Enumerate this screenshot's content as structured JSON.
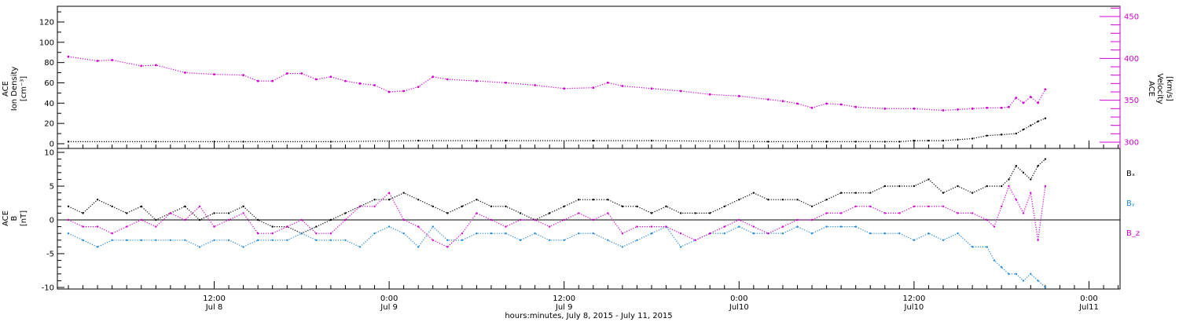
{
  "chart_data": [
    {
      "type": "scatter",
      "panel": "top",
      "ylabel_left": [
        "ACE",
        "Ion Density",
        "[cm⁻³]"
      ],
      "ylabel_right": [
        "ACE",
        "Velocity",
        "[km/s]"
      ],
      "ylim_left": [
        -3,
        135
      ],
      "ylim_right": [
        296,
        461
      ],
      "yticks_left": [
        0,
        20,
        40,
        60,
        80,
        100,
        120
      ],
      "yticks_right": [
        300,
        350,
        400,
        450
      ],
      "xlim_hours": [
        0,
        72
      ],
      "series": [
        {
          "axis": "left",
          "color": "#000000",
          "points_hours": [
            0,
            6,
            12,
            18,
            24,
            28,
            30,
            36,
            40,
            48,
            52,
            54,
            56,
            57,
            58,
            59,
            60,
            61,
            62,
            63,
            64,
            65,
            65.5,
            66,
            66.5,
            67
          ],
          "values": [
            2,
            2,
            2,
            2,
            3,
            3,
            3,
            3,
            3,
            2,
            2,
            2,
            2,
            2,
            3,
            3,
            3,
            4,
            5,
            8,
            9,
            10,
            14,
            18,
            22,
            25
          ]
        },
        {
          "axis": "right",
          "color": "#d000d0",
          "points_hours": [
            0,
            2,
            3,
            5,
            6,
            8,
            10,
            12,
            13,
            14,
            15,
            16,
            17,
            18,
            19,
            20,
            21,
            22,
            23,
            24,
            25,
            26,
            28,
            30,
            32,
            34,
            36,
            37,
            38,
            40,
            42,
            44,
            46,
            48,
            49,
            50,
            51,
            52,
            53,
            54,
            56,
            58,
            60,
            61,
            62,
            63,
            64,
            64.5,
            65,
            65.5,
            66,
            66.5,
            67
          ],
          "values": [
            402,
            397,
            398,
            391,
            392,
            383,
            381,
            380,
            373,
            373,
            382,
            382,
            375,
            378,
            373,
            370,
            368,
            360,
            361,
            366,
            378,
            375,
            373,
            371,
            368,
            364,
            365,
            371,
            367,
            364,
            361,
            357,
            355,
            351,
            349,
            346,
            341,
            346,
            345,
            342,
            340,
            340,
            338,
            339,
            340,
            341,
            341,
            342,
            353,
            347,
            354,
            347,
            363
          ]
        }
      ]
    },
    {
      "type": "scatter",
      "panel": "bottom",
      "ylabel_left": [
        "ACE",
        "B",
        "[nT]"
      ],
      "ylim": [
        -11,
        11
      ],
      "yticks": [
        -10,
        -5,
        0,
        5,
        10
      ],
      "xlim_hours": [
        0,
        72
      ],
      "xticks": [
        {
          "hour": 10,
          "time": "12:00",
          "date": "Jul 8"
        },
        {
          "hour": 22,
          "time": "0:00",
          "date": "Jul 9"
        },
        {
          "hour": 34,
          "time": "12:00",
          "date": "Jul 9"
        },
        {
          "hour": 46,
          "time": "0:00",
          "date": "Jul10"
        },
        {
          "hour": 58,
          "time": "12:00",
          "date": "Jul10"
        },
        {
          "hour": 70,
          "time": "0:00",
          "date": "Jul11"
        }
      ],
      "xlabel": "hours:minutes, July  8, 2015 - July 11, 2015",
      "series": [
        {
          "name": "Bₓ",
          "color": "#000000",
          "points_hours": [
            0,
            1,
            2,
            3,
            4,
            5,
            6,
            7,
            8,
            9,
            10,
            11,
            12,
            13,
            14,
            15,
            16,
            17,
            18,
            19,
            20,
            21,
            22,
            23,
            24,
            25,
            26,
            27,
            28,
            29,
            30,
            31,
            32,
            33,
            34,
            35,
            36,
            37,
            38,
            39,
            40,
            41,
            42,
            43,
            44,
            45,
            46,
            47,
            48,
            49,
            50,
            51,
            52,
            53,
            54,
            55,
            56,
            57,
            58,
            59,
            60,
            61,
            62,
            63,
            64,
            64.5,
            65,
            65.5,
            66,
            66.5,
            67
          ],
          "values": [
            2,
            1,
            3,
            2,
            1,
            2,
            0,
            1,
            2,
            0,
            1,
            1,
            2,
            0,
            -1,
            -1,
            -2,
            -1,
            0,
            1,
            2,
            3,
            3,
            4,
            3,
            2,
            1,
            2,
            3,
            2,
            2,
            1,
            0,
            1,
            2,
            3,
            3,
            3,
            2,
            2,
            1,
            2,
            1,
            1,
            1,
            2,
            3,
            4,
            3,
            3,
            3,
            2,
            3,
            4,
            4,
            4,
            5,
            5,
            5,
            6,
            4,
            5,
            4,
            5,
            5,
            6,
            8,
            7,
            6,
            8,
            9
          ]
        },
        {
          "name": "Bᵧ",
          "color": "#1e88d8",
          "points_hours": [
            0,
            1,
            2,
            3,
            4,
            5,
            6,
            7,
            8,
            9,
            10,
            11,
            12,
            13,
            14,
            15,
            16,
            17,
            18,
            19,
            20,
            21,
            22,
            23,
            24,
            25,
            26,
            27,
            28,
            29,
            30,
            31,
            32,
            33,
            34,
            35,
            36,
            37,
            38,
            39,
            40,
            41,
            42,
            43,
            44,
            45,
            46,
            47,
            48,
            49,
            50,
            51,
            52,
            53,
            54,
            55,
            56,
            57,
            58,
            59,
            60,
            61,
            62,
            63,
            63.5,
            64,
            64.5,
            65,
            65.5,
            66,
            66.5,
            67
          ],
          "values": [
            -2,
            -3,
            -4,
            -3,
            -3,
            -3,
            -3,
            -3,
            -3,
            -4,
            -3,
            -3,
            -4,
            -3,
            -3,
            -3,
            -2,
            -3,
            -3,
            -3,
            -4,
            -2,
            -1,
            -2,
            -4,
            -1,
            -3,
            -3,
            -2,
            -2,
            -2,
            -3,
            -2,
            -3,
            -3,
            -2,
            -2,
            -3,
            -4,
            -3,
            -2,
            -1,
            -4,
            -3,
            -2,
            -2,
            -1,
            -2,
            -2,
            -2,
            -1,
            -2,
            -1,
            -1,
            -1,
            -2,
            -2,
            -2,
            -3,
            -2,
            -3,
            -2,
            -4,
            -4,
            -6,
            -7,
            -8,
            -8,
            -9,
            -8,
            -9,
            -10
          ]
        },
        {
          "name": "B_z",
          "color": "#d000d0",
          "points_hours": [
            0,
            1,
            2,
            3,
            4,
            5,
            6,
            7,
            8,
            9,
            10,
            11,
            12,
            13,
            14,
            15,
            16,
            17,
            18,
            19,
            20,
            21,
            22,
            23,
            24,
            25,
            26,
            27,
            28,
            29,
            30,
            31,
            32,
            33,
            34,
            35,
            36,
            37,
            38,
            39,
            40,
            41,
            42,
            43,
            44,
            45,
            46,
            47,
            48,
            49,
            50,
            51,
            52,
            53,
            54,
            55,
            56,
            57,
            58,
            59,
            60,
            61,
            62,
            63,
            63.5,
            64,
            64.5,
            65,
            65.5,
            66,
            66.5,
            67
          ],
          "values": [
            0,
            -1,
            -1,
            -2,
            -1,
            0,
            -1,
            1,
            0,
            2,
            -1,
            0,
            1,
            -2,
            -2,
            -1,
            0,
            -2,
            -2,
            0,
            2,
            2,
            4,
            0,
            -1,
            -3,
            -4,
            -2,
            1,
            0,
            -1,
            0,
            0,
            -1,
            0,
            1,
            0,
            1,
            -2,
            -1,
            -1,
            -1,
            -2,
            -3,
            -2,
            -1,
            0,
            -1,
            -2,
            -1,
            0,
            0,
            1,
            1,
            2,
            2,
            1,
            1,
            2,
            2,
            2,
            1,
            1,
            0,
            -1,
            2,
            5,
            3,
            1,
            4,
            -3,
            5
          ]
        }
      ]
    }
  ]
}
